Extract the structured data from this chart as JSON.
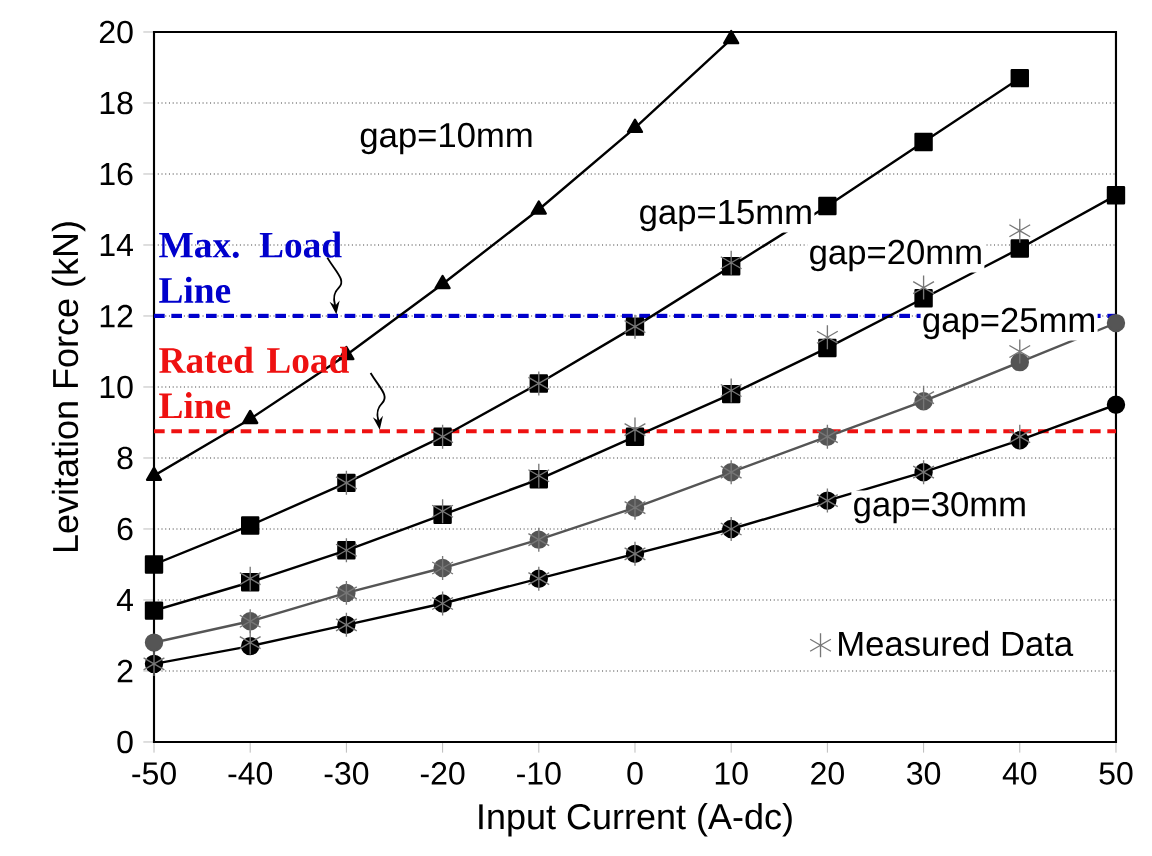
{
  "chart_data": {
    "type": "line",
    "x": [
      -50,
      -40,
      -30,
      -20,
      -10,
      0,
      10,
      20,
      30,
      40,
      50
    ],
    "series": [
      {
        "name": "gap=10mm",
        "color": "#000000",
        "marker": "triangle",
        "values": [
          7.5,
          9.1,
          10.9,
          12.9,
          15.0,
          17.3,
          19.8,
          null,
          null,
          null,
          null
        ]
      },
      {
        "name": "gap=15mm",
        "color": "#000000",
        "marker": "square",
        "values": [
          5.0,
          6.1,
          7.3,
          8.6,
          10.1,
          11.7,
          13.4,
          15.1,
          16.9,
          18.7,
          null
        ]
      },
      {
        "name": "gap=20mm",
        "color": "#000000",
        "marker": "square",
        "values": [
          3.7,
          4.5,
          5.4,
          6.4,
          7.4,
          8.6,
          9.8,
          11.1,
          12.5,
          13.9,
          15.4
        ]
      },
      {
        "name": "gap=25mm",
        "color": "#555555",
        "marker": "circle",
        "values": [
          2.8,
          3.4,
          4.2,
          4.9,
          5.7,
          6.6,
          7.6,
          8.6,
          9.6,
          10.7,
          11.8
        ]
      },
      {
        "name": "gap=30mm",
        "color": "#000000",
        "marker": "circle",
        "values": [
          2.2,
          2.7,
          3.3,
          3.9,
          4.6,
          5.3,
          6.0,
          6.8,
          7.6,
          8.5,
          9.5
        ]
      },
      {
        "type": "scatter",
        "name": "Measured Data",
        "color": "#777777",
        "marker": "cross",
        "x": [
          -30,
          -20,
          -10,
          0,
          10,
          -40,
          -30,
          -20,
          -10,
          0,
          10,
          20,
          30,
          40,
          -40,
          -30,
          -20,
          -10,
          0,
          10,
          20,
          30,
          40,
          -50,
          -40,
          -30,
          -20,
          -10,
          0,
          10,
          20,
          30,
          40
        ],
        "values": [
          7.3,
          8.6,
          10.1,
          11.7,
          13.5,
          4.6,
          5.4,
          6.5,
          7.5,
          8.8,
          9.9,
          11.4,
          12.8,
          14.4,
          3.4,
          4.2,
          4.9,
          5.7,
          6.6,
          7.6,
          8.6,
          9.7,
          11.0,
          2.2,
          2.8,
          3.3,
          3.9,
          4.6,
          5.3,
          6.0,
          6.8,
          7.6,
          8.6
        ]
      }
    ],
    "xlabel": "Input Current (A-dc)",
    "ylabel": "Levitation Force (kN)",
    "xlim": [
      -50,
      50
    ],
    "ylim": [
      0,
      20
    ],
    "xticks": [
      -50,
      -40,
      -30,
      -20,
      -10,
      0,
      10,
      20,
      30,
      40,
      50
    ],
    "yticks": [
      0,
      2,
      4,
      6,
      8,
      10,
      12,
      14,
      16,
      18,
      20
    ],
    "grid": "y",
    "legend": "bottom right",
    "ref_lines": [
      {
        "axis": "y",
        "value": 12,
        "color": "#0000cc",
        "line_style": "dashed"
      },
      {
        "axis": "y",
        "value": 8.75,
        "color": "#ee1111",
        "line_style": "dashed"
      }
    ],
    "annotations": [
      {
        "text": "Max. Load Line",
        "x": -31,
        "y": 12
      },
      {
        "text": "Rated Load Line",
        "x": -26.5,
        "y": 8.75
      }
    ]
  }
}
